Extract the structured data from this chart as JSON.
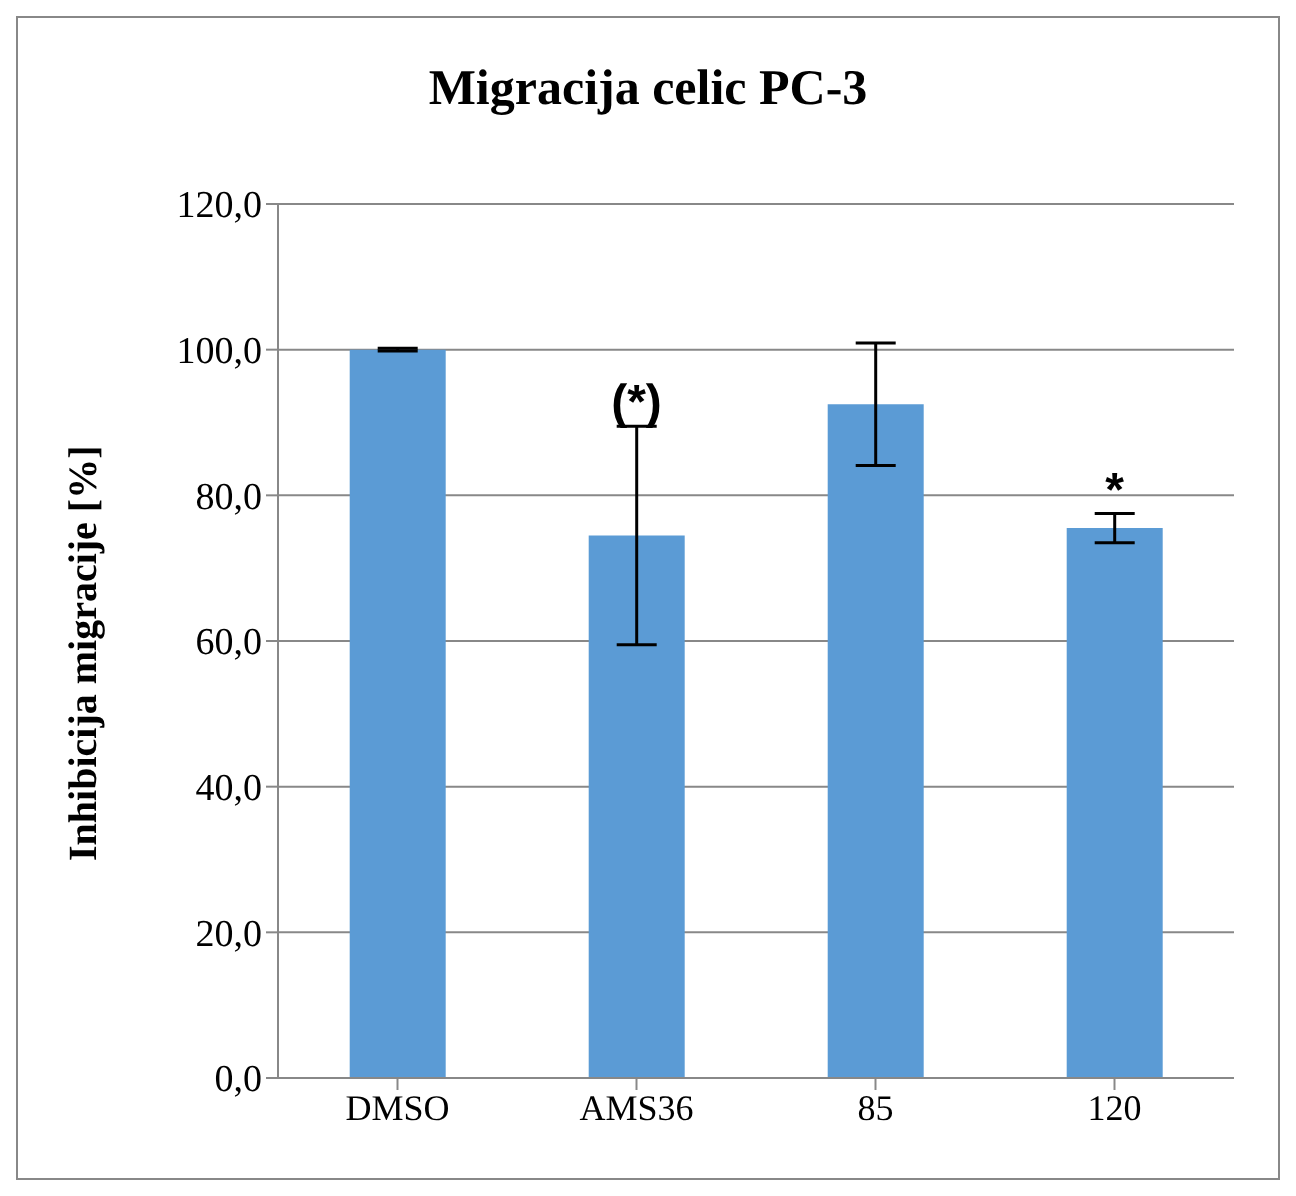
{
  "chart_data": {
    "type": "bar",
    "title": "Migracija celic PC-3",
    "ylabel": "Inhibicija migracije [%]",
    "categories": [
      "DMSO",
      "AMS36",
      "85",
      "120"
    ],
    "values": [
      100,
      74.5,
      92.5,
      75.5
    ],
    "errors": [
      0.2,
      15,
      8.4,
      2
    ],
    "color": "#5b9bd5",
    "ylim": [
      0,
      120
    ],
    "yticks": [
      {
        "value": 0,
        "label": "0,0"
      },
      {
        "value": 20,
        "label": "20,0"
      },
      {
        "value": 40,
        "label": "40,0"
      },
      {
        "value": 60,
        "label": "60,0"
      },
      {
        "value": 80,
        "label": "80,0"
      },
      {
        "value": 100,
        "label": "100,0"
      },
      {
        "value": 120,
        "label": "120,0"
      }
    ],
    "grid": "y",
    "annotations": [
      {
        "text": "(*)",
        "x": "AMS36",
        "y": 89.5
      },
      {
        "text": "*",
        "x": "120",
        "y": 77.5
      }
    ]
  }
}
